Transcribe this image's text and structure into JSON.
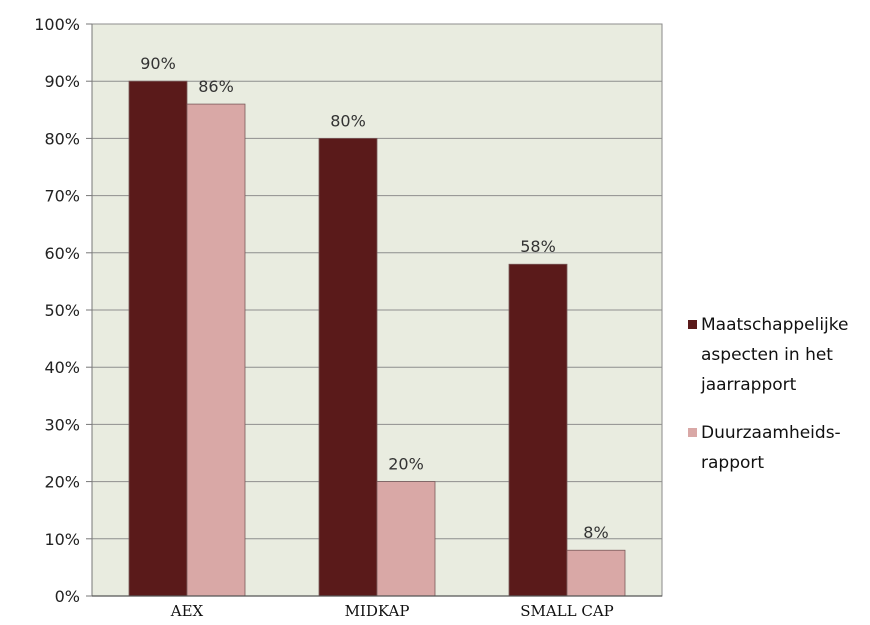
{
  "chart_data": {
    "type": "bar",
    "categories": [
      "AEX",
      "MIDKAP",
      "SMALL CAP"
    ],
    "series": [
      {
        "name": "Maatschappelijke aspecten in het jaarrapport",
        "legend_lines": [
          "Maatschappelijke",
          "aspecten in het",
          "jaarrapport"
        ],
        "values": [
          90,
          80,
          58
        ],
        "labels": [
          "90%",
          "80%",
          "58%"
        ],
        "color": "#5a1a1a"
      },
      {
        "name": "Duurzaamheids-rapport",
        "legend_lines": [
          "Duurzaamheids-",
          "rapport"
        ],
        "values": [
          86,
          20,
          8
        ],
        "labels": [
          "86%",
          "20%",
          "8%"
        ],
        "color": "#d9a8a6"
      }
    ],
    "y_ticks": [
      "0%",
      "10%",
      "20%",
      "30%",
      "40%",
      "50%",
      "60%",
      "70%",
      "80%",
      "90%",
      "100%"
    ],
    "ylim": [
      0,
      100
    ],
    "grid": true,
    "plot_background": "#e9ece0",
    "legend_position": "right"
  }
}
